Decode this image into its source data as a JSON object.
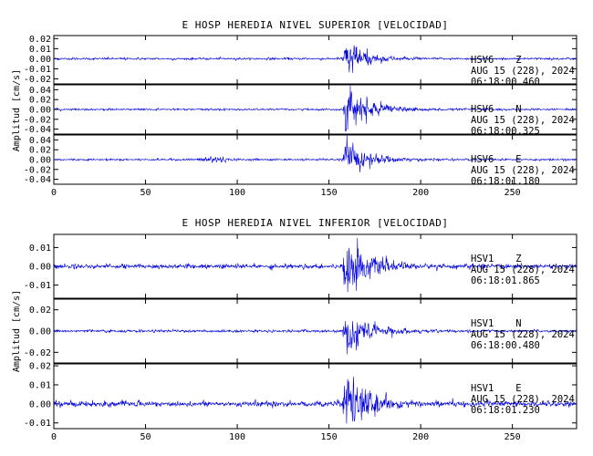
{
  "chart_data": [
    {
      "type": "line",
      "title": "E HOSP HEREDIA NIVEL SUPERIOR [VELOCIDAD]",
      "ylabel": "Amplitud [cm/s]",
      "xlabel": "",
      "xlim": [
        0,
        285
      ],
      "xticks": [
        "0",
        "50",
        "100",
        "150",
        "200",
        "250"
      ],
      "grid": false,
      "color": "#0000dd",
      "series": [
        {
          "station": "HSV6",
          "component": "Z",
          "date": "AUG 15 (228), 2024",
          "time": "06:18:00.460",
          "ylim": [
            -0.025,
            0.023
          ],
          "yticks": [
            "0.02",
            "0.01",
            "0.00",
            "-0.01",
            "-0.02"
          ],
          "noise": 0.0008,
          "onset": 157,
          "peak": 0.022,
          "decay": 9,
          "bump_x": 85,
          "bump_amp": 0.0
        },
        {
          "station": "HSV6",
          "component": "N",
          "date": "AUG 15 (228), 2024",
          "time": "06:18:00.325",
          "ylim": [
            -0.05,
            0.05
          ],
          "yticks": [
            "0.04",
            "0.02",
            "0.00",
            "-0.02",
            "-0.04"
          ],
          "noise": 0.0015,
          "onset": 157,
          "peak": 0.045,
          "decay": 12,
          "bump_x": 85,
          "bump_amp": 0.0
        },
        {
          "station": "HSV6",
          "component": "E",
          "date": "AUG 15 (228), 2024",
          "time": "06:18:01.180",
          "ylim": [
            -0.05,
            0.05
          ],
          "yticks": [
            "0.04",
            "0.02",
            "0.00",
            "-0.02",
            "-0.04"
          ],
          "noise": 0.0015,
          "onset": 157,
          "peak": 0.045,
          "decay": 11,
          "bump_x": 87,
          "bump_amp": 0.006
        }
      ]
    },
    {
      "type": "line",
      "title": "E HOSP HEREDIA NIVEL INFERIOR [VELOCIDAD]",
      "ylabel": "Amplitud [cm/s]",
      "xlabel": "",
      "xlim": [
        0,
        285
      ],
      "xticks": [
        "0",
        "50",
        "100",
        "150",
        "200",
        "250"
      ],
      "grid": false,
      "color": "#0000dd",
      "series": [
        {
          "station": "HSV1",
          "component": "Z",
          "date": "AUG 15 (228), 2024",
          "time": "06:18:01.865",
          "ylim": [
            -0.017,
            0.017
          ],
          "yticks": [
            "0.01",
            "0.00",
            "-0.01"
          ],
          "noise": 0.0009,
          "onset": 157,
          "peak": 0.016,
          "decay": 11,
          "bump_x": 0,
          "bump_amp": 0.0
        },
        {
          "station": "HSV1",
          "component": "N",
          "date": "AUG 15 (228), 2024",
          "time": "06:18:00.480",
          "ylim": [
            -0.03,
            0.03
          ],
          "yticks": [
            "0.02",
            "0.00",
            "-0.02"
          ],
          "noise": 0.0009,
          "onset": 157,
          "peak": 0.028,
          "decay": 10,
          "bump_x": 0,
          "bump_amp": 0.0
        },
        {
          "station": "HSV1",
          "component": "E",
          "date": "AUG 15 (228), 2024",
          "time": "06:18:01.230",
          "ylim": [
            -0.013,
            0.021
          ],
          "yticks": [
            "0.02",
            "0.01",
            "0.00",
            "-0.01"
          ],
          "noise": 0.0011,
          "onset": 157,
          "peak": 0.018,
          "decay": 10,
          "bump_x": 0,
          "bump_amp": 0.0
        }
      ]
    }
  ]
}
